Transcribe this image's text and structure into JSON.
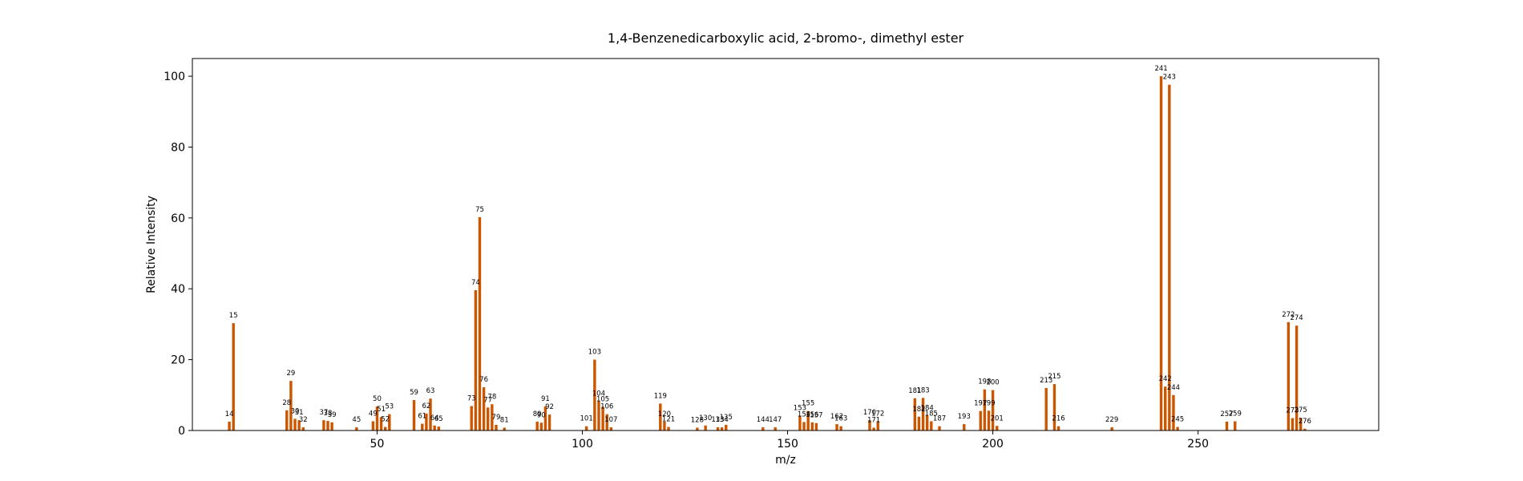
{
  "chart_data": {
    "type": "bar",
    "title": "1,4-Benzenedicarboxylic acid, 2-bromo-, dimethyl ester",
    "xlabel": "m/z",
    "ylabel": "Relative Intensity",
    "xlim": [
      5,
      294
    ],
    "ylim": [
      0,
      105
    ],
    "xticks": [
      50,
      100,
      150,
      200,
      250
    ],
    "yticks": [
      0,
      20,
      40,
      60,
      80,
      100
    ],
    "bar_color": "#cc5500",
    "peaks": [
      {
        "mz": 14,
        "intensity": 2.5
      },
      {
        "mz": 15,
        "intensity": 30.3
      },
      {
        "mz": 28,
        "intensity": 5.7
      },
      {
        "mz": 29,
        "intensity": 14.0
      },
      {
        "mz": 30,
        "intensity": 3.3
      },
      {
        "mz": 31,
        "intensity": 2.9
      },
      {
        "mz": 32,
        "intensity": 0.9
      },
      {
        "mz": 37,
        "intensity": 2.9
      },
      {
        "mz": 38,
        "intensity": 2.7
      },
      {
        "mz": 39,
        "intensity": 2.3
      },
      {
        "mz": 45,
        "intensity": 0.9
      },
      {
        "mz": 49,
        "intensity": 2.6
      },
      {
        "mz": 50,
        "intensity": 6.8
      },
      {
        "mz": 51,
        "intensity": 3.8
      },
      {
        "mz": 52,
        "intensity": 1.0
      },
      {
        "mz": 53,
        "intensity": 4.6
      },
      {
        "mz": 59,
        "intensity": 8.6
      },
      {
        "mz": 61,
        "intensity": 1.9
      },
      {
        "mz": 62,
        "intensity": 4.8
      },
      {
        "mz": 63,
        "intensity": 9.0
      },
      {
        "mz": 64,
        "intensity": 1.4
      },
      {
        "mz": 65,
        "intensity": 1.1
      },
      {
        "mz": 73,
        "intensity": 6.9
      },
      {
        "mz": 74,
        "intensity": 39.6
      },
      {
        "mz": 75,
        "intensity": 60.2
      },
      {
        "mz": 76,
        "intensity": 12.2
      },
      {
        "mz": 77,
        "intensity": 6.5
      },
      {
        "mz": 78,
        "intensity": 7.4
      },
      {
        "mz": 79,
        "intensity": 1.6
      },
      {
        "mz": 81,
        "intensity": 0.8
      },
      {
        "mz": 89,
        "intensity": 2.5
      },
      {
        "mz": 90,
        "intensity": 2.2
      },
      {
        "mz": 91,
        "intensity": 6.8
      },
      {
        "mz": 92,
        "intensity": 4.5
      },
      {
        "mz": 101,
        "intensity": 1.2
      },
      {
        "mz": 103,
        "intensity": 20.0
      },
      {
        "mz": 104,
        "intensity": 8.3
      },
      {
        "mz": 105,
        "intensity": 6.7
      },
      {
        "mz": 106,
        "intensity": 4.6
      },
      {
        "mz": 107,
        "intensity": 0.9
      },
      {
        "mz": 119,
        "intensity": 7.6
      },
      {
        "mz": 120,
        "intensity": 2.5
      },
      {
        "mz": 121,
        "intensity": 1.0
      },
      {
        "mz": 128,
        "intensity": 0.8
      },
      {
        "mz": 130,
        "intensity": 1.4
      },
      {
        "mz": 133,
        "intensity": 0.9
      },
      {
        "mz": 134,
        "intensity": 0.9
      },
      {
        "mz": 135,
        "intensity": 1.6
      },
      {
        "mz": 144,
        "intensity": 0.9
      },
      {
        "mz": 147,
        "intensity": 0.9
      },
      {
        "mz": 153,
        "intensity": 4.2
      },
      {
        "mz": 154,
        "intensity": 2.4
      },
      {
        "mz": 155,
        "intensity": 5.5
      },
      {
        "mz": 156,
        "intensity": 2.3
      },
      {
        "mz": 157,
        "intensity": 2.1
      },
      {
        "mz": 162,
        "intensity": 1.8
      },
      {
        "mz": 163,
        "intensity": 1.2
      },
      {
        "mz": 170,
        "intensity": 2.9
      },
      {
        "mz": 171,
        "intensity": 0.8
      },
      {
        "mz": 172,
        "intensity": 2.6
      },
      {
        "mz": 181,
        "intensity": 9.1
      },
      {
        "mz": 182,
        "intensity": 3.9
      },
      {
        "mz": 183,
        "intensity": 9.2
      },
      {
        "mz": 184,
        "intensity": 4.2
      },
      {
        "mz": 185,
        "intensity": 2.6
      },
      {
        "mz": 187,
        "intensity": 1.2
      },
      {
        "mz": 193,
        "intensity": 1.8
      },
      {
        "mz": 197,
        "intensity": 5.5
      },
      {
        "mz": 198,
        "intensity": 11.6
      },
      {
        "mz": 199,
        "intensity": 5.6
      },
      {
        "mz": 200,
        "intensity": 11.4
      },
      {
        "mz": 201,
        "intensity": 1.3
      },
      {
        "mz": 213,
        "intensity": 12.0
      },
      {
        "mz": 215,
        "intensity": 13.1
      },
      {
        "mz": 216,
        "intensity": 1.2
      },
      {
        "mz": 229,
        "intensity": 0.9
      },
      {
        "mz": 241,
        "intensity": 100.0
      },
      {
        "mz": 242,
        "intensity": 12.4
      },
      {
        "mz": 243,
        "intensity": 97.6
      },
      {
        "mz": 244,
        "intensity": 10.0
      },
      {
        "mz": 245,
        "intensity": 1.0
      },
      {
        "mz": 257,
        "intensity": 2.5
      },
      {
        "mz": 259,
        "intensity": 2.6
      },
      {
        "mz": 272,
        "intensity": 30.6
      },
      {
        "mz": 273,
        "intensity": 3.5
      },
      {
        "mz": 274,
        "intensity": 29.6
      },
      {
        "mz": 275,
        "intensity": 3.6
      },
      {
        "mz": 276,
        "intensity": 0.5
      }
    ]
  }
}
